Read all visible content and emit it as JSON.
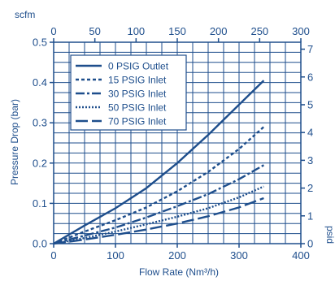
{
  "chart_data": {
    "type": "line",
    "xlabel_primary": "Flow Rate (Nm³/h)",
    "xlabel_secondary": "scfm",
    "ylabel_primary": "Pressure Drop (bar)",
    "ylabel_secondary": "psid",
    "xlim": [
      0,
      400
    ],
    "ylim": [
      0,
      0.5
    ],
    "x2lim": [
      0,
      300
    ],
    "y2lim": [
      0,
      7.25
    ],
    "x_ticks": [
      "0",
      "100",
      "200",
      "300",
      "400"
    ],
    "y_ticks": [
      "0.0",
      "0.1",
      "0.2",
      "0.3",
      "0.4",
      "0.5"
    ],
    "x2_ticks": [
      "0",
      "50",
      "100",
      "150",
      "200",
      "250",
      "300"
    ],
    "y2_ticks": [
      "0",
      "1",
      "2",
      "3",
      "4",
      "5",
      "6",
      "7"
    ],
    "grid": true,
    "legend_position": "top-left",
    "color": "#1e4e8c",
    "series": [
      {
        "name": "0 PSIG Outlet",
        "dash": "solid",
        "x": [
          0,
          50,
          100,
          150,
          200,
          250,
          300,
          340
        ],
        "y": [
          0,
          0.045,
          0.088,
          0.138,
          0.2,
          0.27,
          0.345,
          0.405
        ]
      },
      {
        "name": "15 PSIG Inlet",
        "dash": "short-dash",
        "x": [
          0,
          50,
          100,
          150,
          200,
          250,
          300,
          340
        ],
        "y": [
          0,
          0.03,
          0.058,
          0.09,
          0.13,
          0.178,
          0.235,
          0.29
        ]
      },
      {
        "name": "30 PSIG Inlet",
        "dash": "dash-dot",
        "x": [
          0,
          50,
          100,
          150,
          200,
          250,
          300,
          340
        ],
        "y": [
          0,
          0.02,
          0.04,
          0.065,
          0.093,
          0.123,
          0.16,
          0.195
        ]
      },
      {
        "name": "50 PSIG Inlet",
        "dash": "dot",
        "x": [
          0,
          50,
          100,
          150,
          200,
          250,
          300,
          340
        ],
        "y": [
          0,
          0.014,
          0.03,
          0.048,
          0.067,
          0.088,
          0.115,
          0.142
        ]
      },
      {
        "name": "70 PSIG Inlet",
        "dash": "long-dash",
        "x": [
          0,
          50,
          100,
          150,
          200,
          250,
          300,
          340
        ],
        "y": [
          0,
          0.01,
          0.022,
          0.035,
          0.05,
          0.068,
          0.09,
          0.113
        ]
      }
    ]
  }
}
